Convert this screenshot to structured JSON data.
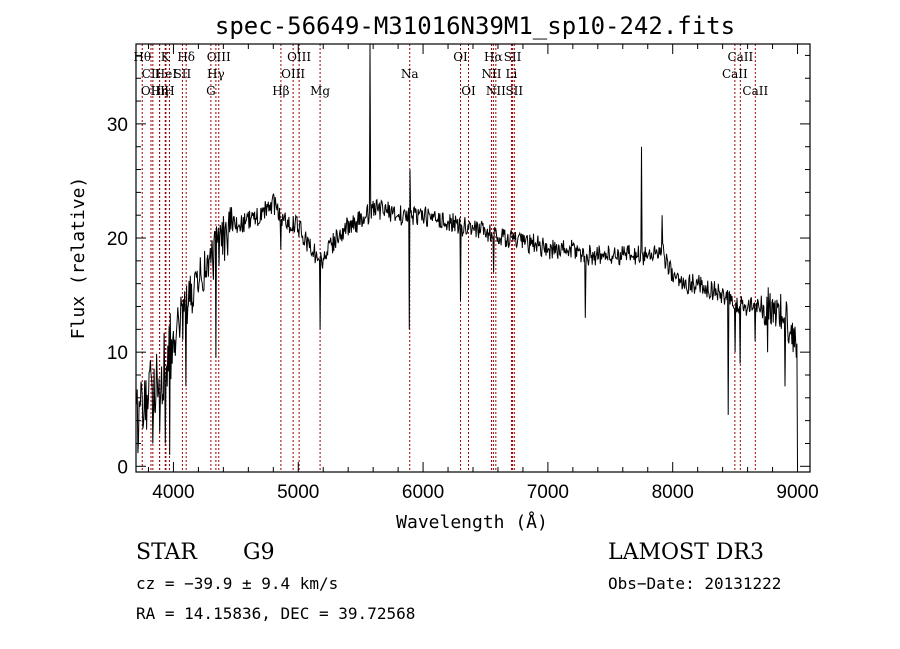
{
  "chart_data": {
    "type": "line",
    "title": "spec-56649-M31016N39M1_sp10-242.fits",
    "xlabel": "Wavelength (Å)",
    "ylabel": "Flux (relative)",
    "xlim": [
      3700,
      9100
    ],
    "ylim": [
      -0.5,
      37
    ],
    "x_ticks": [
      4000,
      5000,
      6000,
      7000,
      8000,
      9000
    ],
    "y_ticks": [
      0,
      10,
      20,
      30
    ],
    "grid": false,
    "line_color": "#000000",
    "marker_color": "#a00000",
    "continuum": {
      "x": [
        3700,
        3800,
        3900,
        4000,
        4100,
        4200,
        4300,
        4400,
        4500,
        4600,
        4700,
        4800,
        4850,
        4900,
        5000,
        5100,
        5200,
        5300,
        5400,
        5500,
        5600,
        5700,
        5800,
        5900,
        6000,
        6100,
        6200,
        6300,
        6400,
        6500,
        6600,
        6700,
        6800,
        6900,
        7000,
        7100,
        7200,
        7300,
        7400,
        7500,
        7600,
        7700,
        7800,
        7900,
        7950,
        8000,
        8100,
        8200,
        8300,
        8400,
        8500,
        8600,
        8700,
        8800,
        8900,
        9000
      ],
      "y": [
        4,
        6,
        8,
        11,
        14,
        16,
        18,
        20,
        21,
        21.5,
        22,
        23,
        22,
        21.5,
        21,
        19,
        18,
        20,
        21,
        21.5,
        22.5,
        22.5,
        22,
        22,
        22,
        21.5,
        21.5,
        21,
        21,
        20.5,
        20,
        20,
        19.5,
        19.5,
        19,
        19,
        19,
        18.5,
        18.5,
        18.5,
        18.5,
        18.5,
        18.5,
        19,
        18,
        16.5,
        16,
        16,
        15.5,
        15,
        14,
        14,
        14,
        14,
        13,
        11
      ]
    },
    "features": [
      {
        "x": 3800,
        "y": 6
      },
      {
        "x": 3835,
        "y": 2
      },
      {
        "x": 3890,
        "y": 3
      },
      {
        "x": 3934,
        "y": 2
      },
      {
        "x": 3970,
        "y": 1
      },
      {
        "x": 4101,
        "y": 7
      },
      {
        "x": 4340,
        "y": 9.5
      },
      {
        "x": 4861,
        "y": 19
      },
      {
        "x": 5175,
        "y": 12
      },
      {
        "x": 5577,
        "y": 37
      },
      {
        "x": 5890,
        "y": 12
      },
      {
        "x": 5893,
        "y": 26
      },
      {
        "x": 6300,
        "y": 14.5
      },
      {
        "x": 6563,
        "y": 17
      },
      {
        "x": 7300,
        "y": 13
      },
      {
        "x": 7750,
        "y": 28
      },
      {
        "x": 7914,
        "y": 22
      },
      {
        "x": 8446,
        "y": 4.5
      },
      {
        "x": 8500,
        "y": 10
      },
      {
        "x": 8542,
        "y": 9
      },
      {
        "x": 8662,
        "y": 11
      },
      {
        "x": 8760,
        "y": 10
      },
      {
        "x": 8900,
        "y": 7
      },
      {
        "x": 9000,
        "y": 0
      }
    ],
    "spectral_lines": [
      {
        "x": 3750,
        "row": 0,
        "label": "Hθ"
      },
      {
        "x": 3820,
        "row": 1,
        "label": "CII"
      },
      {
        "x": 3835,
        "row": 2,
        "label": "OIII"
      },
      {
        "x": 3889,
        "row": 0,
        "label": ""
      },
      {
        "x": 3889,
        "row": 2,
        "label": "Hη"
      },
      {
        "x": 3934,
        "row": 0,
        "label": "K"
      },
      {
        "x": 3940,
        "row": 1,
        "label": "HeI"
      },
      {
        "x": 3968,
        "row": 2,
        "label": "H"
      },
      {
        "x": 4072,
        "row": 1,
        "label": "SII"
      },
      {
        "x": 4102,
        "row": 0,
        "label": "Hδ"
      },
      {
        "x": 4300,
        "row": 2,
        "label": "G"
      },
      {
        "x": 4340,
        "row": 1,
        "label": "Hγ"
      },
      {
        "x": 4363,
        "row": 0,
        "label": "OIII"
      },
      {
        "x": 4861,
        "row": 2,
        "label": "Hβ"
      },
      {
        "x": 4959,
        "row": 1,
        "label": "OIII"
      },
      {
        "x": 5007,
        "row": 0,
        "label": "OIII"
      },
      {
        "x": 5175,
        "row": 2,
        "label": "Mg"
      },
      {
        "x": 5893,
        "row": 1,
        "label": "Na"
      },
      {
        "x": 6300,
        "row": 0,
        "label": "OI"
      },
      {
        "x": 6364,
        "row": 2,
        "label": "OI"
      },
      {
        "x": 6548,
        "row": 1,
        "label": "NII"
      },
      {
        "x": 6563,
        "row": 0,
        "label": "Hα"
      },
      {
        "x": 6583,
        "row": 2,
        "label": "NII"
      },
      {
        "x": 6708,
        "row": 1,
        "label": "Li"
      },
      {
        "x": 6717,
        "row": 0,
        "label": "SII"
      },
      {
        "x": 6731,
        "row": 2,
        "label": "SII"
      },
      {
        "x": 8498,
        "row": 1,
        "label": "CaII"
      },
      {
        "x": 8542,
        "row": 0,
        "label": "CaII"
      },
      {
        "x": 8662,
        "row": 2,
        "label": "CaII"
      }
    ]
  },
  "info": {
    "class_label": "STAR",
    "subclass": "G9",
    "survey": "LAMOST DR3",
    "cz": "cz = −39.9 ± 9.4 km/s",
    "obs_date": "Obs−Date: 20131222",
    "coords": "RA =  14.15836, DEC =  39.72568"
  }
}
